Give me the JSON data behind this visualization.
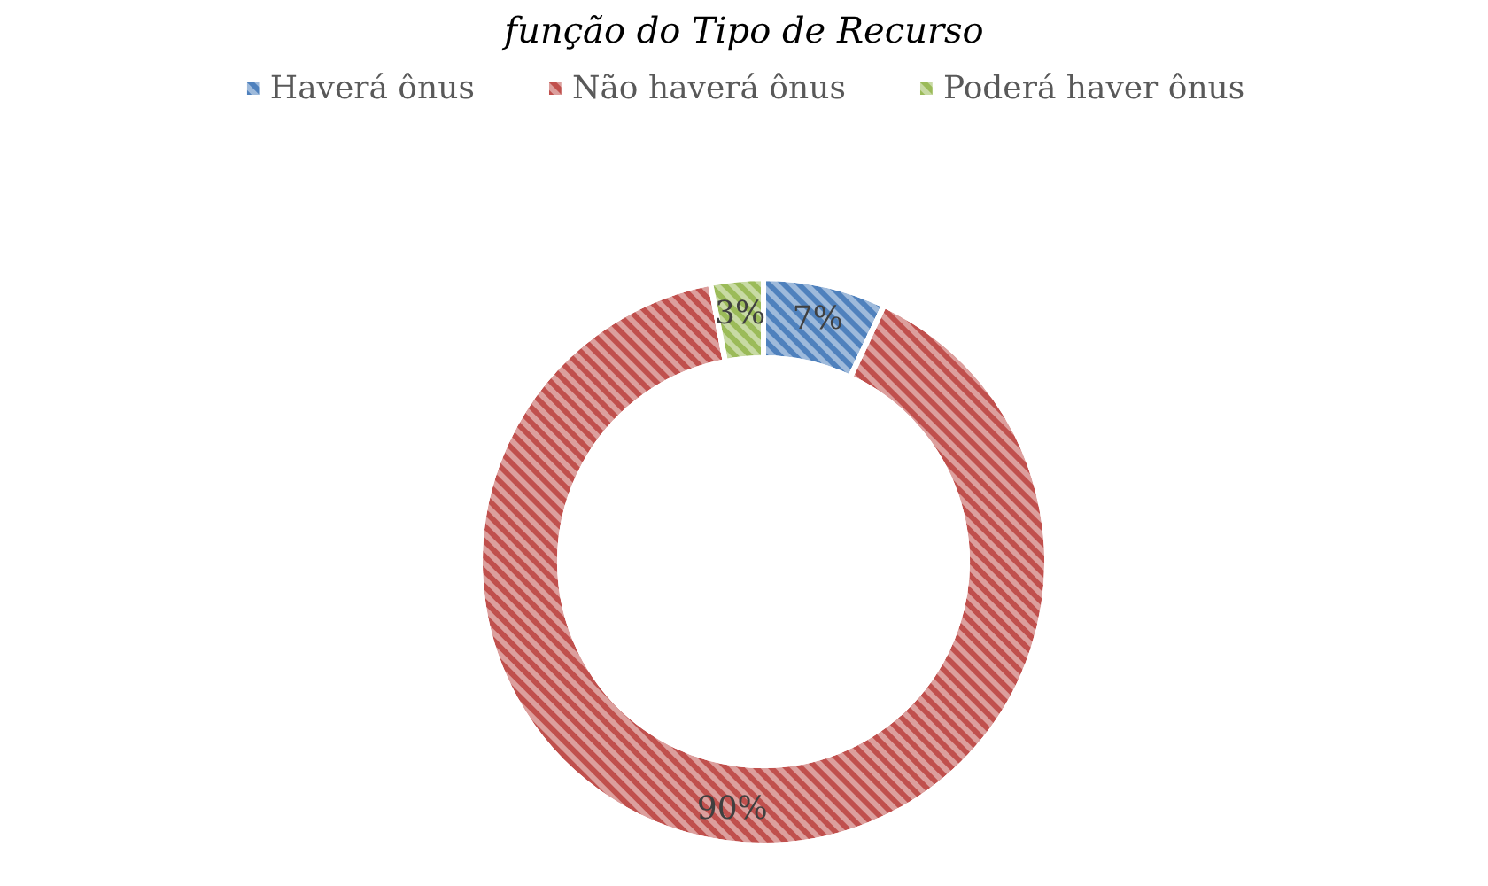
{
  "chart_data": {
    "type": "donut",
    "title": "função do Tipo de Recurso",
    "categories": [
      "Haverá ônus",
      "Não haverá ônus",
      "Poderá haver ônus"
    ],
    "values": [
      7,
      90,
      3
    ],
    "value_labels": [
      "7%",
      "90%",
      "3%"
    ],
    "colors": [
      "#4f81bd",
      "#c0504d",
      "#9bbb59"
    ],
    "legend": "top"
  }
}
